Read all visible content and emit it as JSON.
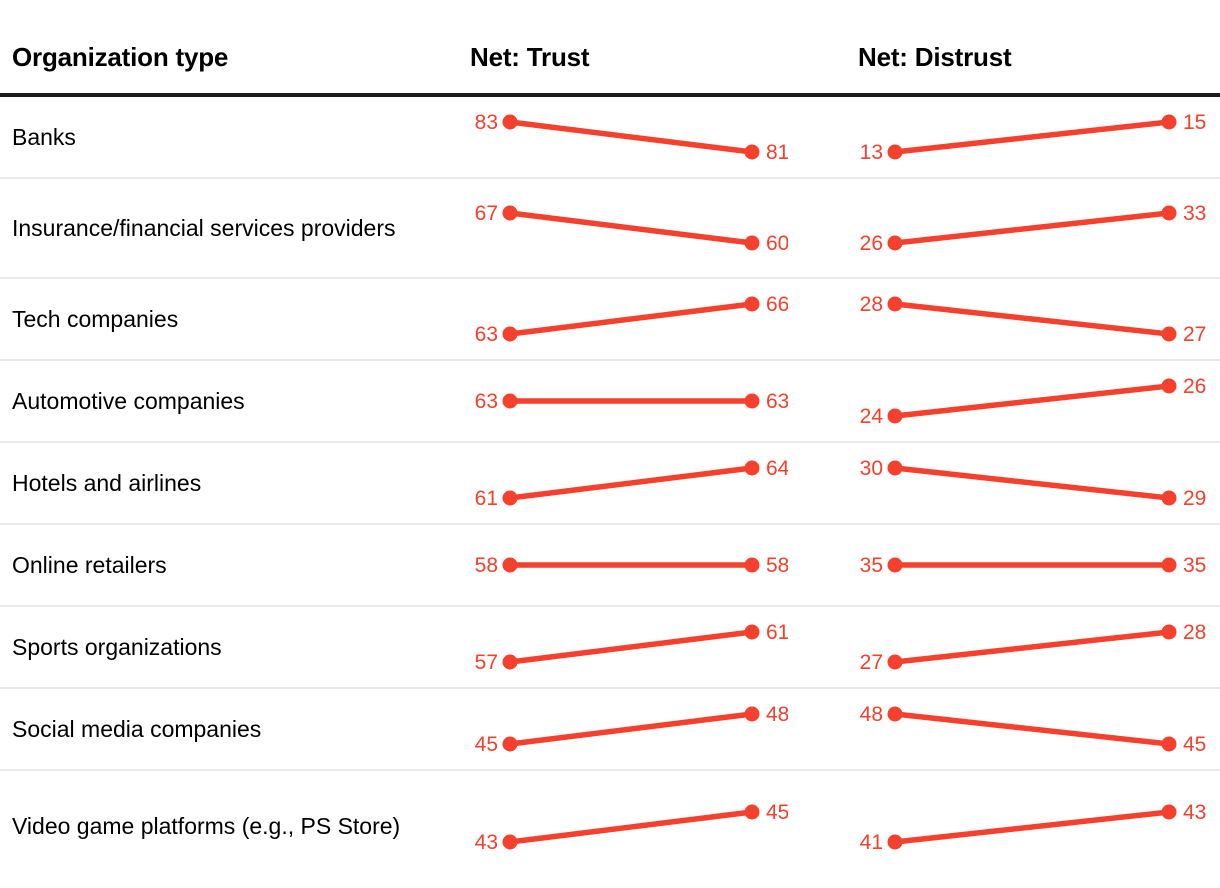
{
  "colors": {
    "accent": "#f4402c",
    "header_rule": "#1c1c1c",
    "row_separator": "#eaeaea",
    "text": "#000000",
    "background": "#ffffff"
  },
  "header": {
    "organization": "Organization type",
    "trust": "Net: Trust",
    "distrust": "Net: Distrust"
  },
  "chart_data": {
    "type": "table",
    "subtype": "slope-chart-table",
    "title": "",
    "columns": [
      "Organization type",
      "Net: Trust",
      "Net: Distrust"
    ],
    "points_per_slope": 2,
    "slope_encoding": "each cell shows two values (earlier, later) joined by a line; slope direction shows change only",
    "accent_color": "#f4402c",
    "rows": [
      {
        "label": "Banks",
        "trust": [
          83,
          81
        ],
        "distrust": [
          13,
          15
        ]
      },
      {
        "label": "Insurance/financial services providers",
        "trust": [
          67,
          60
        ],
        "distrust": [
          26,
          33
        ]
      },
      {
        "label": "Tech companies",
        "trust": [
          63,
          66
        ],
        "distrust": [
          28,
          27
        ]
      },
      {
        "label": "Automotive companies",
        "trust": [
          63,
          63
        ],
        "distrust": [
          24,
          26
        ]
      },
      {
        "label": "Hotels and airlines",
        "trust": [
          61,
          64
        ],
        "distrust": [
          30,
          29
        ]
      },
      {
        "label": "Online retailers",
        "trust": [
          58,
          58
        ],
        "distrust": [
          35,
          35
        ]
      },
      {
        "label": "Sports organizations",
        "trust": [
          57,
          61
        ],
        "distrust": [
          27,
          28
        ]
      },
      {
        "label": "Social media companies",
        "trust": [
          45,
          48
        ],
        "distrust": [
          48,
          45
        ]
      },
      {
        "label": "Video game platforms (e.g., PS Store)",
        "trust": [
          43,
          45
        ],
        "distrust": [
          41,
          43
        ]
      }
    ]
  }
}
